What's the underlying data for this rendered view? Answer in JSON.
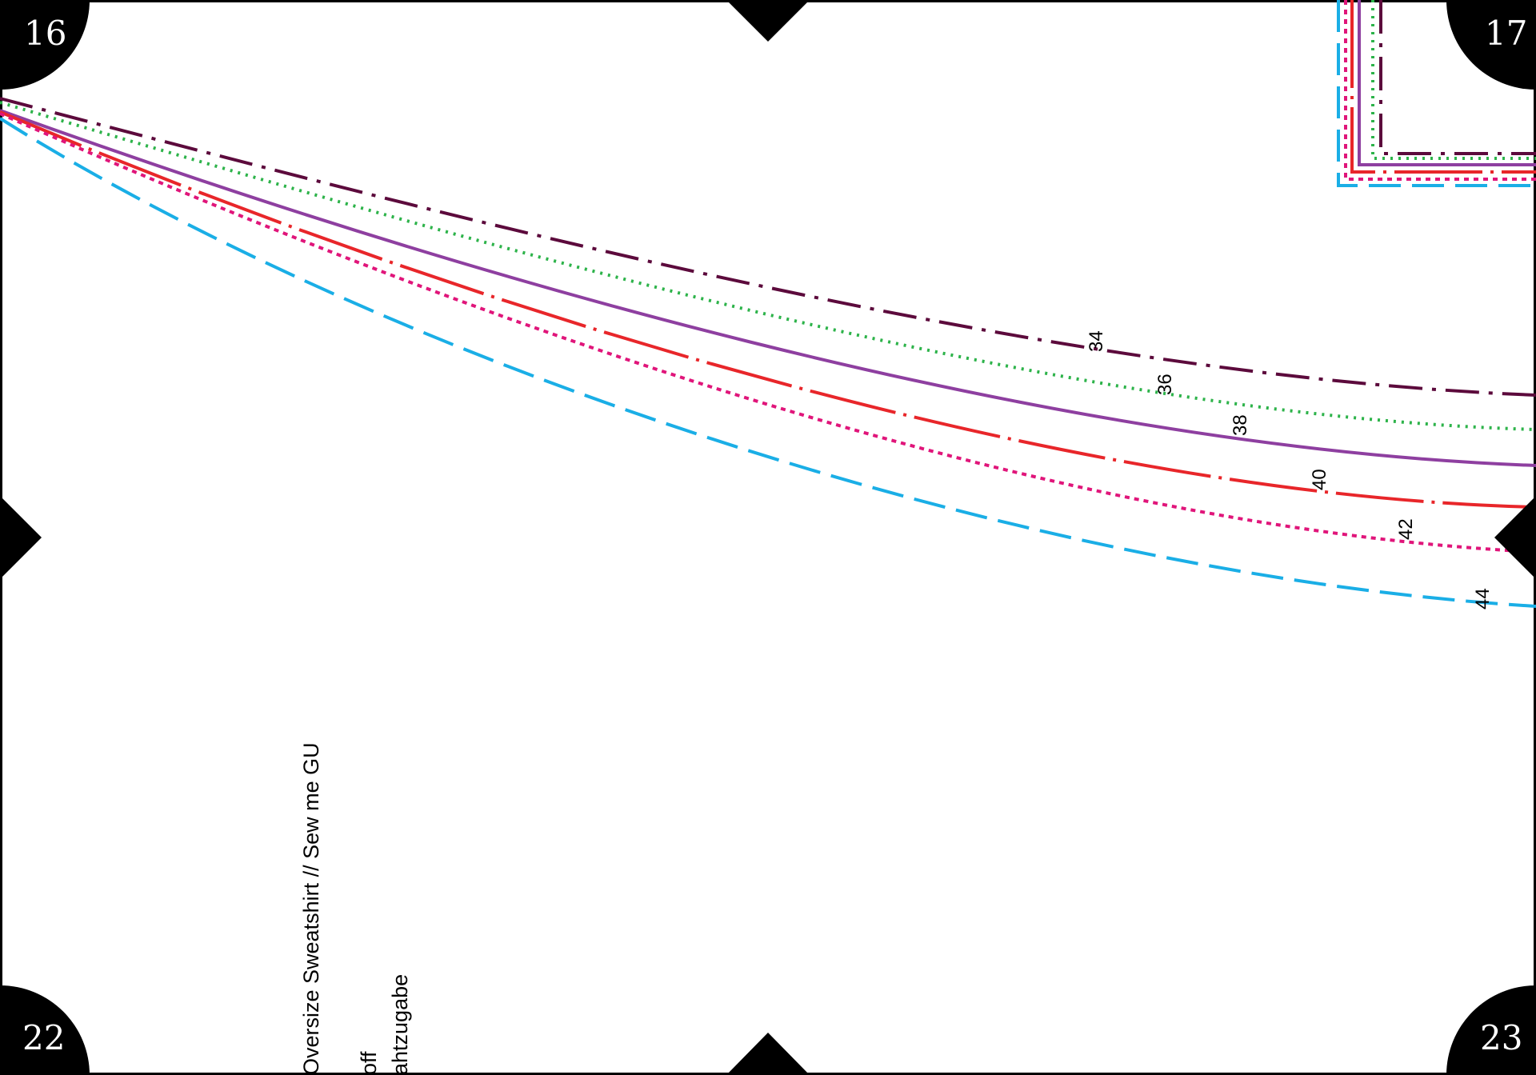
{
  "page_numbers": {
    "top_left": "16",
    "top_right": "17",
    "bottom_left": "22",
    "bottom_right": "23"
  },
  "size_labels": {
    "s34": "34",
    "s36": "36",
    "s38": "38",
    "s40": "40",
    "s42": "42",
    "s44": "44"
  },
  "side_text": {
    "title": "Oversize Sweatshirt // Sew me GU",
    "line2": "off",
    "line3": "ahtzugabe"
  },
  "colors": {
    "size_34": "#5c0a3c",
    "size_36": "#2db34a",
    "size_38": "#8e3fa0",
    "size_40": "#e8262a",
    "size_42": "#e0157a",
    "size_44": "#1aaee6",
    "frame": "#000000"
  }
}
